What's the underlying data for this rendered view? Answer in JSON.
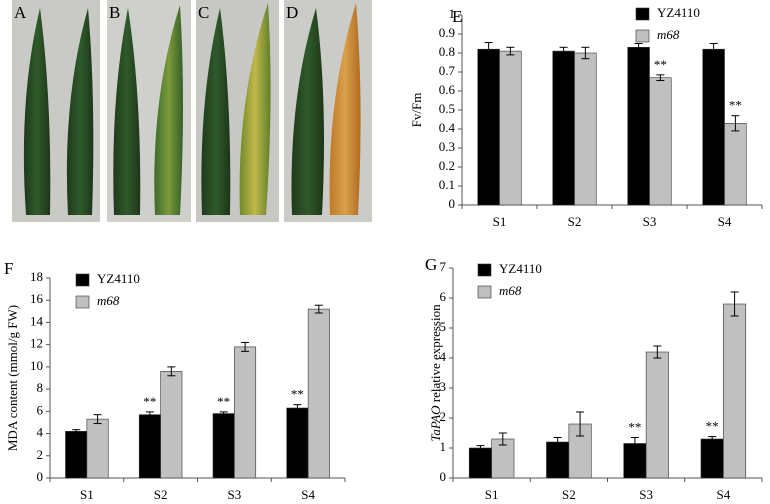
{
  "photo_panels": {
    "labels": [
      "A",
      "B",
      "C",
      "D"
    ]
  },
  "chart_data": [
    {
      "type": "bar",
      "panel_label": "E",
      "y_label": "Fv/Fm",
      "categories": [
        "S1",
        "S2",
        "S3",
        "S4"
      ],
      "series": [
        {
          "name": "YZ4110",
          "color": "#000000",
          "values": [
            0.82,
            0.81,
            0.83,
            0.82
          ],
          "errors": [
            0.035,
            0.02,
            0.02,
            0.03
          ]
        },
        {
          "name": "m68",
          "color": "#c0c0c0",
          "italic": true,
          "values": [
            0.81,
            0.8,
            0.67,
            0.43
          ],
          "errors": [
            0.02,
            0.03,
            0.015,
            0.04
          ]
        }
      ],
      "annotations": [
        {
          "text": "**",
          "series": "m68",
          "category": "S3"
        },
        {
          "text": "**",
          "series": "m68",
          "category": "S4"
        }
      ],
      "ylim": [
        0,
        1
      ],
      "yticks": [
        0,
        0.1,
        0.2,
        0.3,
        0.4,
        0.5,
        0.6,
        0.7,
        0.8,
        0.9,
        1
      ],
      "legend": "upper right"
    },
    {
      "type": "bar",
      "panel_label": "F",
      "y_label": "MDA content (mmol/g FW)",
      "categories": [
        "S1",
        "S2",
        "S3",
        "S4"
      ],
      "series": [
        {
          "name": "YZ4110",
          "color": "#000000",
          "values": [
            4.2,
            5.7,
            5.8,
            6.3
          ],
          "errors": [
            0.15,
            0.25,
            0.15,
            0.3
          ]
        },
        {
          "name": "m68",
          "color": "#c0c0c0",
          "italic": true,
          "values": [
            5.3,
            9.6,
            11.8,
            15.2
          ],
          "errors": [
            0.4,
            0.4,
            0.4,
            0.35
          ]
        }
      ],
      "annotations": [
        {
          "text": "**",
          "series": "YZ4110",
          "category": "S2"
        },
        {
          "text": "**",
          "series": "YZ4110",
          "category": "S3"
        },
        {
          "text": "**",
          "series": "YZ4110",
          "category": "S4"
        }
      ],
      "ylim": [
        0,
        18
      ],
      "yticks": [
        0,
        2,
        4,
        6,
        8,
        10,
        12,
        14,
        16,
        18
      ],
      "legend": "upper left"
    },
    {
      "type": "bar",
      "panel_label": "G",
      "y_label_italic": "TaPAO",
      "y_label": "relative expression",
      "categories": [
        "S1",
        "S2",
        "S3",
        "S4"
      ],
      "series": [
        {
          "name": "YZ4110",
          "color": "#000000",
          "values": [
            1.0,
            1.2,
            1.15,
            1.3
          ],
          "errors": [
            0.08,
            0.15,
            0.2,
            0.08
          ]
        },
        {
          "name": "m68",
          "color": "#c0c0c0",
          "italic": true,
          "values": [
            1.3,
            1.8,
            4.2,
            5.8
          ],
          "errors": [
            0.2,
            0.4,
            0.2,
            0.4
          ]
        }
      ],
      "annotations": [
        {
          "text": "**",
          "series": "YZ4110",
          "category": "S3"
        },
        {
          "text": "**",
          "series": "YZ4110",
          "category": "S4"
        }
      ],
      "ylim": [
        0,
        7
      ],
      "yticks": [
        0,
        1,
        2,
        3,
        4,
        5,
        6,
        7
      ],
      "legend": "upper left"
    }
  ]
}
